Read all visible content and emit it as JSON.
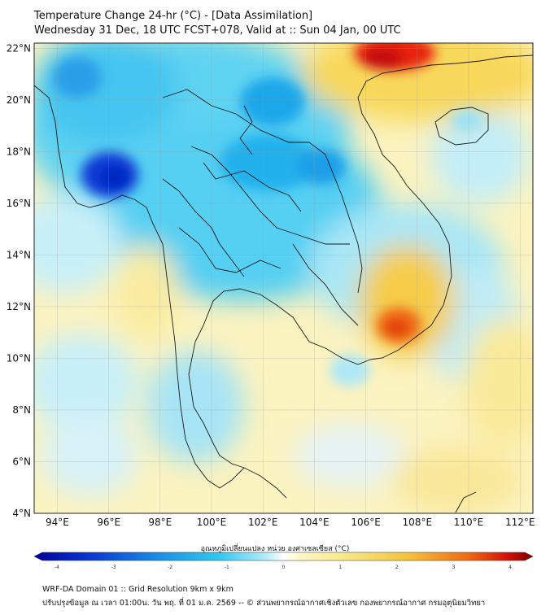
{
  "title": {
    "line1": "Temperature Change 24-hr (°C) - [Data Assimilation]",
    "line2": "Wednesday 31 Dec, 18 UTC FCST+078, Valid at :: Sun 04 Jan, 00 UTC"
  },
  "map": {
    "lat_labels": [
      "22°N",
      "20°N",
      "18°N",
      "16°N",
      "14°N",
      "12°N",
      "10°N",
      "8°N",
      "6°N",
      "4°N"
    ],
    "lat_values": [
      22,
      20,
      18,
      16,
      14,
      12,
      10,
      8,
      6,
      4
    ],
    "lon_labels": [
      "94°E",
      "96°E",
      "98°E",
      "100°E",
      "102°E",
      "104°E",
      "106°E",
      "108°E",
      "110°E",
      "112°E"
    ],
    "lon_values": [
      94,
      96,
      98,
      100,
      102,
      104,
      106,
      108,
      110,
      112
    ],
    "lon_range": [
      93.1,
      112.5
    ],
    "lat_range": [
      4,
      22.2
    ]
  },
  "colorbar": {
    "label": "อุณหภูมิเปลี่ยนแปลง หน่วย องศาเซลเซียส (°C)",
    "min": -4,
    "max": 4,
    "ticks": [
      "-4",
      "-3",
      "-2",
      "-1",
      "0",
      "1",
      "2",
      "3",
      "4"
    ]
  },
  "footer": {
    "line1": "WRF-DA Domain 01 :: Grid Resolution 9km x 9km",
    "line2": "ปรับปรุงข้อมูล ณ เวลา 01:00น. วัน พฤ. ที่ 01 ม.ค. 2569 -- © ส่วนพยากรณ์อากาศเชิงตัวเลข กองพยากรณ์อากาศ กรมอุตุนิยมวิทยา"
  },
  "colors": {
    "deep_blue": "#0a3bd6",
    "cyan": "#2fc8f0",
    "pale_cyan": "#bdeefa",
    "yellow": "#f8e88a",
    "orange": "#f39a1e",
    "red": "#e8200c"
  }
}
